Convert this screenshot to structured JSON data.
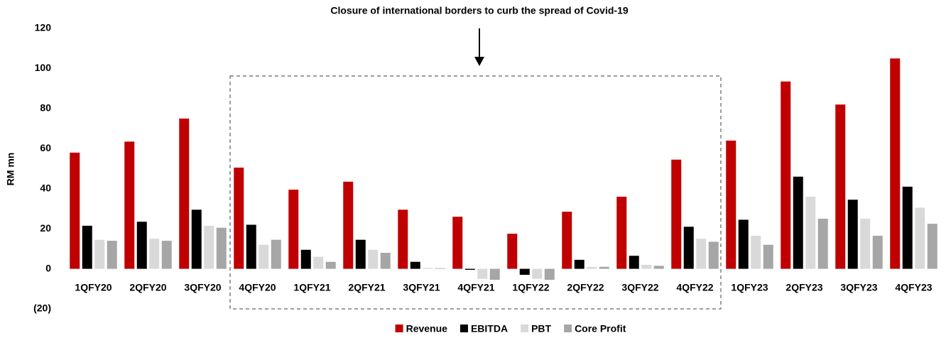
{
  "chart_data": {
    "type": "bar",
    "annotation": "Closure of international borders to curb the spread of Covid-19",
    "y_label": "RM mn",
    "categories": [
      "1QFY20",
      "2QFY20",
      "3QFY20",
      "4QFY20",
      "1QFY21",
      "2QFY21",
      "3QFY21",
      "4QFY21",
      "1QFY22",
      "2QFY22",
      "3QFY22",
      "4QFY22",
      "1QFY23",
      "2QFY23",
      "3QFY23",
      "4QFY23"
    ],
    "series": [
      {
        "name": "Revenue",
        "color": "#c00000",
        "values": [
          58,
          63.5,
          75,
          50.5,
          39.5,
          43.5,
          29.5,
          26,
          17.5,
          28.5,
          36,
          54.5,
          64,
          93.5,
          82,
          105
        ]
      },
      {
        "name": "EBITDA",
        "color": "#000000",
        "values": [
          21.5,
          23.5,
          29.5,
          22,
          9.5,
          14.5,
          3.5,
          -0.5,
          -3,
          4.5,
          6.5,
          21,
          24.5,
          46,
          34.5,
          41
        ]
      },
      {
        "name": "PBT",
        "color": "#d9d9d9",
        "values": [
          14.5,
          15,
          21.5,
          12,
          6,
          9.5,
          0.5,
          -5,
          -5,
          1,
          2,
          15,
          16.5,
          36,
          25,
          30.5
        ]
      },
      {
        "name": "Core Profit",
        "color": "#a6a6a6",
        "values": [
          14,
          14,
          20.5,
          14.5,
          3.5,
          8,
          0.3,
          -5.5,
          -5.5,
          1,
          1.5,
          13.5,
          12,
          25,
          16.5,
          22.5
        ]
      }
    ],
    "ylim": [
      -20,
      120
    ],
    "yticks": [
      {
        "value": -20,
        "label": "(20)"
      },
      0,
      20,
      40,
      60,
      80,
      100,
      120
    ],
    "legend": "bottom"
  }
}
